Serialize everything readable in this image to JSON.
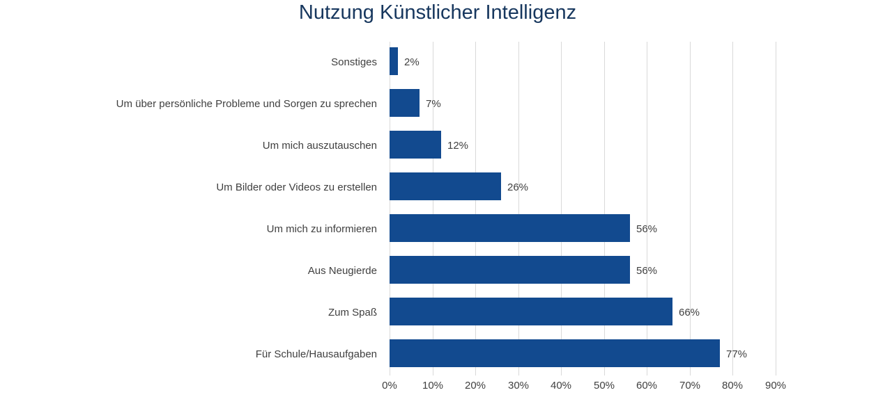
{
  "chart_data": {
    "type": "bar",
    "orientation": "horizontal",
    "title": "Nutzung Künstlicher Intelligenz",
    "categories": [
      "Sonstiges",
      "Um über persönliche Probleme und Sorgen zu sprechen",
      "Um mich auszutauschen",
      "Um Bilder oder Videos zu erstellen",
      "Um mich zu informieren",
      "Aus Neugierde",
      "Zum Spaß",
      "Für Schule/Hausaufgaben"
    ],
    "values": [
      2,
      7,
      12,
      26,
      56,
      56,
      66,
      77
    ],
    "value_labels": [
      "2%",
      "7%",
      "12%",
      "26%",
      "56%",
      "56%",
      "66%",
      "77%"
    ],
    "xlabel": "",
    "ylabel": "",
    "xlim": [
      0,
      90
    ],
    "x_tick_values": [
      0,
      10,
      20,
      30,
      40,
      50,
      60,
      70,
      80,
      90
    ],
    "x_tick_labels": [
      "0%",
      "10%",
      "20%",
      "30%",
      "40%",
      "50%",
      "60%",
      "70%",
      "80%",
      "90%"
    ],
    "grid": "vertical",
    "legend": "none",
    "colors": {
      "bar": "#124a8f",
      "title": "#17375e",
      "label": "#404040",
      "gridline": "#d9d9d9"
    }
  }
}
